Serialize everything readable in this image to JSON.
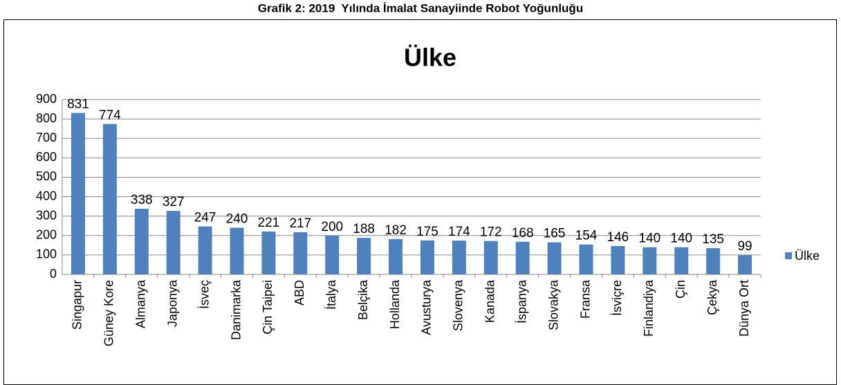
{
  "heading": "Grafik 2: 2019  Yılında İmalat Sanayiinde Robot Yoğunluğu",
  "chart_data": {
    "type": "bar",
    "title": "Ülke",
    "categories": [
      "Singapur",
      "Güney Kore",
      "Almanya",
      "Japonya",
      "İsveç",
      "Danimarka",
      "Çin Taipei",
      "ABD",
      "İtalya",
      "Belçika",
      "Hollanda",
      "Avusturya",
      "Slovenya",
      "Kanada",
      "İspanya",
      "Slovakya",
      "Fransa",
      "İsviçre",
      "Finlandiya",
      "Çin",
      "Çekya",
      "Dünya Ort"
    ],
    "series": [
      {
        "name": "Ülke",
        "color": "#4f81bd",
        "values": [
          831,
          774,
          338,
          327,
          247,
          240,
          221,
          217,
          200,
          188,
          182,
          175,
          174,
          172,
          168,
          165,
          154,
          146,
          140,
          140,
          135,
          99
        ]
      }
    ],
    "ylim": [
      0,
      900
    ],
    "yticks": [
      0,
      100,
      200,
      300,
      400,
      500,
      600,
      700,
      800,
      900
    ],
    "grid": true,
    "legend": "right"
  }
}
